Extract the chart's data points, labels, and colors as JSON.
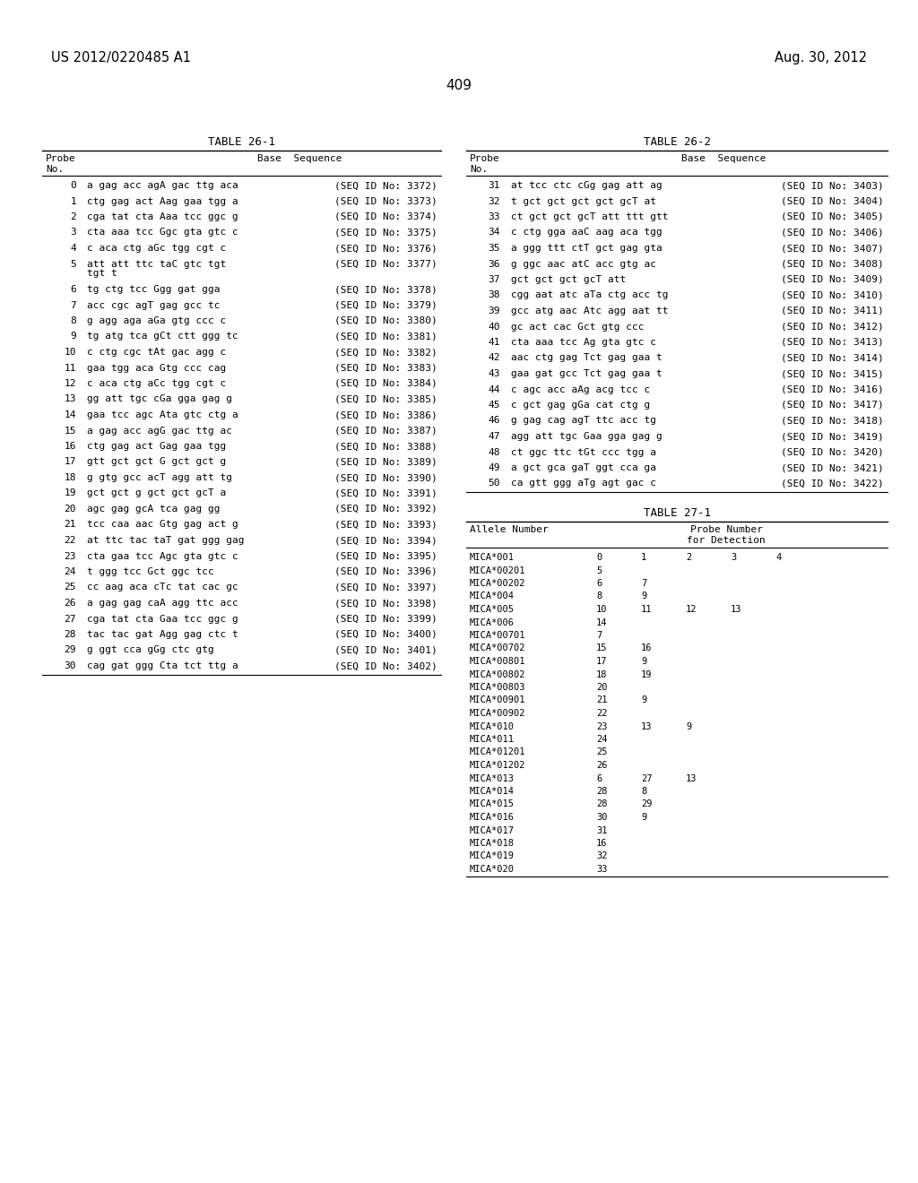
{
  "header_left": "US 2012/0220485 A1",
  "header_right": "Aug. 30, 2012",
  "page_number": "409",
  "table1_title": "TABLE 26-1",
  "table2_title": "TABLE 26-2",
  "table3_title": "TABLE 27-1",
  "table1_rows": [
    [
      "0",
      "a gag acc agA gac ttg aca",
      "(SEQ ID No: 3372)"
    ],
    [
      "1",
      "ctg gag act Aag gaa tgg a",
      "(SEQ ID No: 3373)"
    ],
    [
      "2",
      "cga tat cta Aaa tcc ggc g",
      "(SEQ ID No: 3374)"
    ],
    [
      "3",
      "cta aaa tcc Ggc gta gtc c",
      "(SEQ ID No: 3375)"
    ],
    [
      "4",
      "c aca ctg aGc tgg cgt c",
      "(SEQ ID No: 3376)"
    ],
    [
      "5",
      "att att ttc taC gtc tgt\ntgt t",
      "(SEQ ID No: 3377)"
    ],
    [
      "6",
      "tg ctg tcc Ggg gat gga",
      "(SEQ ID No: 3378)"
    ],
    [
      "7",
      "acc cgc agT gag gcc tc",
      "(SEQ ID No: 3379)"
    ],
    [
      "8",
      "g agg aga aGa gtg ccc c",
      "(SEQ ID No: 3380)"
    ],
    [
      "9",
      "tg atg tca gCt ctt ggg tc",
      "(SEQ ID No: 3381)"
    ],
    [
      "10",
      "c ctg cgc tAt gac agg c",
      "(SEQ ID No: 3382)"
    ],
    [
      "11",
      "gaa tgg aca Gtg ccc cag",
      "(SEQ ID No: 3383)"
    ],
    [
      "12",
      "c aca ctg aCc tgg cgt c",
      "(SEQ ID No: 3384)"
    ],
    [
      "13",
      "gg att tgc cGa gga gag g",
      "(SEQ ID No: 3385)"
    ],
    [
      "14",
      "gaa tcc agc Ata gtc ctg a",
      "(SEQ ID No: 3386)"
    ],
    [
      "15",
      "a gag acc agG gac ttg ac",
      "(SEQ ID No: 3387)"
    ],
    [
      "16",
      "ctg gag act Gag gaa tgg",
      "(SEQ ID No: 3388)"
    ],
    [
      "17",
      "gtt gct gct G gct gct g",
      "(SEQ ID No: 3389)"
    ],
    [
      "18",
      "g gtg gcc acT agg att tg",
      "(SEQ ID No: 3390)"
    ],
    [
      "19",
      "gct gct g gct gct gcT a",
      "(SEQ ID No: 3391)"
    ],
    [
      "20",
      "agc gag gcA tca gag gg",
      "(SEQ ID No: 3392)"
    ],
    [
      "21",
      "tcc caa aac Gtg gag act g",
      "(SEQ ID No: 3393)"
    ],
    [
      "22",
      "at ttc tac taT gat ggg gag",
      "(SEQ ID No: 3394)"
    ],
    [
      "23",
      "cta gaa tcc Agc gta gtc c",
      "(SEQ ID No: 3395)"
    ],
    [
      "24",
      "t ggg tcc Gct ggc tcc",
      "(SEQ ID No: 3396)"
    ],
    [
      "25",
      "cc aag aca cTc tat cac gc",
      "(SEQ ID No: 3397)"
    ],
    [
      "26",
      "a gag gag caA agg ttc acc",
      "(SEQ ID No: 3398)"
    ],
    [
      "27",
      "cga tat cta Gaa tcc ggc g",
      "(SEQ ID No: 3399)"
    ],
    [
      "28",
      "tac tac gat Agg gag ctc t",
      "(SEQ ID No: 3400)"
    ],
    [
      "29",
      "g ggt cca gGg ctc gtg",
      "(SEQ ID No: 3401)"
    ],
    [
      "30",
      "cag gat ggg Cta tct ttg a",
      "(SEQ ID No: 3402)"
    ]
  ],
  "table2_rows": [
    [
      "31",
      "at tcc ctc cGg gag att ag",
      "(SEQ ID No: 3403)"
    ],
    [
      "32",
      "t gct gct gct gct gcT at",
      "(SEQ ID No: 3404)"
    ],
    [
      "33",
      "ct gct gct gcT att ttt gtt",
      "(SEQ ID No: 3405)"
    ],
    [
      "34",
      "c ctg gga aaC aag aca tgg",
      "(SEQ ID No: 3406)"
    ],
    [
      "35",
      "a ggg ttt ctT gct gag gta",
      "(SEQ ID No: 3407)"
    ],
    [
      "36",
      "g ggc aac atC acc gtg ac",
      "(SEQ ID No: 3408)"
    ],
    [
      "37",
      "gct gct gct gcT att",
      "(SEQ ID No: 3409)"
    ],
    [
      "38",
      "cgg aat atc aTa ctg acc tg",
      "(SEQ ID No: 3410)"
    ],
    [
      "39",
      "gcc atg aac Atc agg aat tt",
      "(SEQ ID No: 3411)"
    ],
    [
      "40",
      "gc act cac Gct gtg ccc",
      "(SEQ ID No: 3412)"
    ],
    [
      "41",
      "cta aaa tcc Ag gta gtc c",
      "(SEQ ID No: 3413)"
    ],
    [
      "42",
      "aac ctg gag Tct gag gaa t",
      "(SEQ ID No: 3414)"
    ],
    [
      "43",
      "gaa gat gcc Tct gag gaa t",
      "(SEQ ID No: 3415)"
    ],
    [
      "44",
      "c agc acc aAg acg tcc c",
      "(SEQ ID No: 3416)"
    ],
    [
      "45",
      "c gct gag gGa cat ctg g",
      "(SEQ ID No: 3417)"
    ],
    [
      "46",
      "g gag cag agT ttc acc tg",
      "(SEQ ID No: 3418)"
    ],
    [
      "47",
      "agg att tgc Gaa gga gag g",
      "(SEQ ID No: 3419)"
    ],
    [
      "48",
      "ct ggc ttc tGt ccc tgg a",
      "(SEQ ID No: 3420)"
    ],
    [
      "49",
      "a gct gca gaT ggt cca ga",
      "(SEQ ID No: 3421)"
    ],
    [
      "50",
      "ca gtt ggg aTg agt gac c",
      "(SEQ ID No: 3422)"
    ]
  ],
  "table3_rows": [
    [
      "MICA*001",
      [
        "0",
        "1",
        "2",
        "3",
        "4"
      ]
    ],
    [
      "MICA*00201",
      [
        "5"
      ]
    ],
    [
      "MICA*00202",
      [
        "6",
        "7"
      ]
    ],
    [
      "MICA*004",
      [
        "8",
        "9"
      ]
    ],
    [
      "MICA*005",
      [
        "10",
        "11",
        "12",
        "13"
      ]
    ],
    [
      "MICA*006",
      [
        "14"
      ]
    ],
    [
      "MICA*00701",
      [
        "7"
      ]
    ],
    [
      "MICA*00702",
      [
        "15",
        "16"
      ]
    ],
    [
      "MICA*00801",
      [
        "17",
        "9"
      ]
    ],
    [
      "MICA*00802",
      [
        "18",
        "19"
      ]
    ],
    [
      "MICA*00803",
      [
        "20"
      ]
    ],
    [
      "MICA*00901",
      [
        "21",
        "9"
      ]
    ],
    [
      "MICA*00902",
      [
        "22"
      ]
    ],
    [
      "MICA*010",
      [
        "23",
        "13",
        "9"
      ]
    ],
    [
      "MICA*011",
      [
        "24"
      ]
    ],
    [
      "MICA*01201",
      [
        "25"
      ]
    ],
    [
      "MICA*01202",
      [
        "26"
      ]
    ],
    [
      "MICA*013",
      [
        "6",
        "27",
        "13"
      ]
    ],
    [
      "MICA*014",
      [
        "28",
        "8"
      ]
    ],
    [
      "MICA*015",
      [
        "28",
        "29"
      ]
    ],
    [
      "MICA*016",
      [
        "30",
        "9"
      ]
    ],
    [
      "MICA*017",
      [
        "31"
      ]
    ],
    [
      "MICA*018",
      [
        "16"
      ]
    ],
    [
      "MICA*019",
      [
        "32"
      ]
    ],
    [
      "MICA*020",
      [
        "33"
      ]
    ]
  ]
}
